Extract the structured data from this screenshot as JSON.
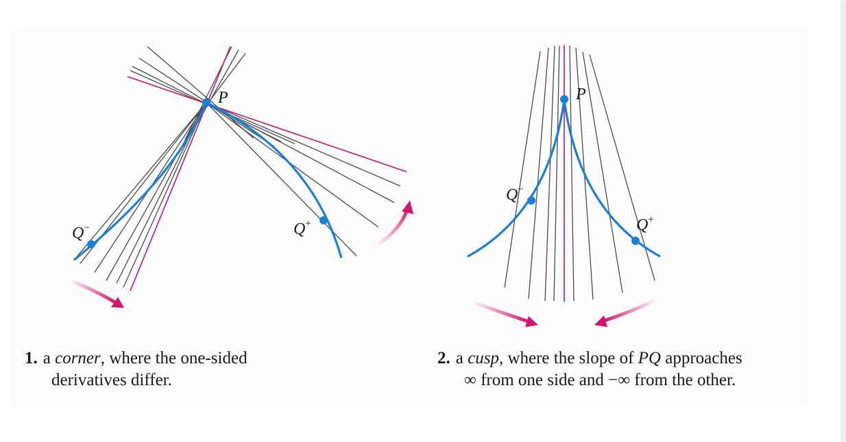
{
  "colors": {
    "curve": "#1a7fd6",
    "limit": "#c8175d",
    "secant": "#4a4a4a",
    "arrow": "#d2176a"
  },
  "figures": [
    {
      "id": "corner",
      "labels": {
        "point": "P",
        "left": "Q",
        "left_sup": "−",
        "right": "Q",
        "right_sup": "+"
      },
      "caption": {
        "number": "1.",
        "pre": "a",
        "term": "corner",
        "rest": ", where the one-sided",
        "line2": "derivatives differ."
      }
    },
    {
      "id": "cusp",
      "labels": {
        "point": "P",
        "left": "Q",
        "left_sup": "−",
        "right": "Q",
        "right_sup": "+"
      },
      "caption": {
        "number": "2.",
        "pre": "a",
        "term": "cusp",
        "rest": ", where the slope of",
        "pq": "PQ",
        "rest2": " approaches",
        "line2": "∞ from one side and −∞ from the other."
      }
    }
  ]
}
